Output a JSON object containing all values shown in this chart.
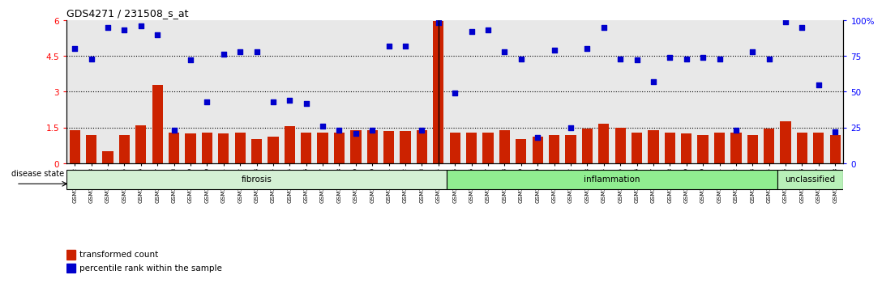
{
  "title": "GDS4271 / 231508_s_at",
  "samples": [
    "GSM380382",
    "GSM380383",
    "GSM380384",
    "GSM380385",
    "GSM380386",
    "GSM380387",
    "GSM380388",
    "GSM380389",
    "GSM380390",
    "GSM380391",
    "GSM380392",
    "GSM380393",
    "GSM380394",
    "GSM380395",
    "GSM380396",
    "GSM380397",
    "GSM380398",
    "GSM380399",
    "GSM380400",
    "GSM380401",
    "GSM380402",
    "GSM380403",
    "GSM380404",
    "GSM380405",
    "GSM380406",
    "GSM380407",
    "GSM380408",
    "GSM380409",
    "GSM380410",
    "GSM380411",
    "GSM380412",
    "GSM380413",
    "GSM380414",
    "GSM380415",
    "GSM380416",
    "GSM380417",
    "GSM380418",
    "GSM380419",
    "GSM380420",
    "GSM380421",
    "GSM380422",
    "GSM380423",
    "GSM380424",
    "GSM380425",
    "GSM380426",
    "GSM380427",
    "GSM380428"
  ],
  "transformed_count": [
    1.4,
    1.2,
    0.5,
    1.2,
    1.6,
    3.3,
    1.3,
    1.25,
    1.3,
    1.25,
    1.3,
    1.0,
    1.1,
    1.55,
    1.3,
    1.3,
    1.3,
    1.4,
    1.4,
    1.35,
    1.35,
    1.4,
    5.95,
    1.3,
    1.3,
    1.3,
    1.4,
    1.0,
    1.1,
    1.2,
    1.2,
    1.45,
    1.65,
    1.5,
    1.3,
    1.4,
    1.3,
    1.25,
    1.2,
    1.3,
    1.3,
    1.2,
    1.45,
    1.75,
    1.3,
    1.3,
    1.2
  ],
  "percentile_rank_pct": [
    80,
    73,
    95,
    93,
    96,
    90,
    23,
    72,
    43,
    76,
    78,
    78,
    43,
    44,
    42,
    26,
    23,
    21,
    23,
    82,
    82,
    23,
    98,
    49,
    92,
    93,
    78,
    73,
    18,
    79,
    25,
    80,
    95,
    73,
    72,
    57,
    74,
    73,
    74,
    73,
    23,
    78,
    73,
    99,
    95,
    55,
    22
  ],
  "groups": [
    {
      "label": "fibrosis",
      "start": 0,
      "end": 23,
      "color": "#d4f0d4"
    },
    {
      "label": "inflammation",
      "start": 23,
      "end": 43,
      "color": "#90ee90"
    },
    {
      "label": "unclassified",
      "start": 43,
      "end": 47,
      "color": "#b8f0b8"
    }
  ],
  "bar_color": "#cc2200",
  "dot_color": "#0000cc",
  "ylim_left": [
    0,
    6
  ],
  "ylim_right": [
    0,
    100
  ],
  "yticks_left": [
    0,
    1.5,
    3.0,
    4.5,
    6.0
  ],
  "ytick_labels_left": [
    "0",
    "1.5",
    "3",
    "4.5",
    "6"
  ],
  "yticks_right_norm": [
    0,
    1.5,
    3.0,
    4.5,
    6.0
  ],
  "ytick_labels_right": [
    "0",
    "25",
    "50",
    "75",
    "100%"
  ],
  "hlines": [
    1.5,
    3.0,
    4.5
  ],
  "vline_index": 22,
  "disease_state_label": "disease state",
  "legend_items": [
    {
      "label": "transformed count",
      "color": "#cc2200"
    },
    {
      "label": "percentile rank within the sample",
      "color": "#0000cc"
    }
  ],
  "bg_color": "#e8e8e8"
}
